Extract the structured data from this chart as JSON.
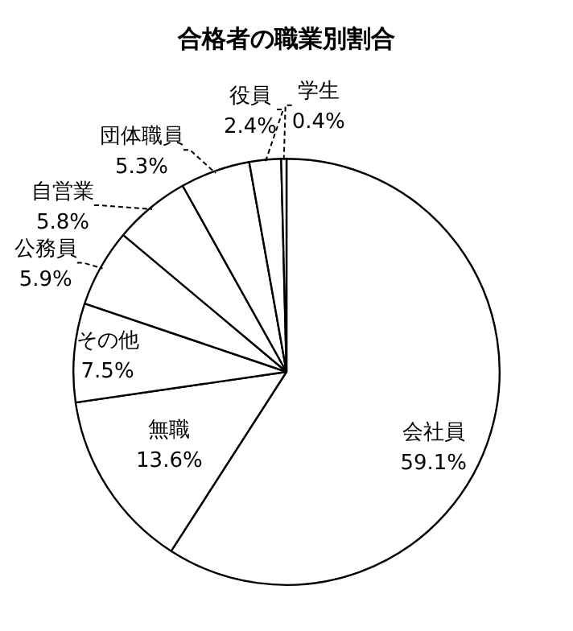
{
  "chart_data": {
    "type": "pie",
    "title": "合格者の職業別割合",
    "categories": [
      "会社員",
      "無職",
      "その他",
      "公務員",
      "自営業",
      "団体職員",
      "役員",
      "学生"
    ],
    "values": [
      59.1,
      13.6,
      7.5,
      5.9,
      5.8,
      5.3,
      2.4,
      0.4
    ],
    "value_labels": [
      "59.1%",
      "13.6%",
      "7.5%",
      "5.9%",
      "5.8%",
      "5.3%",
      "2.4%",
      "0.4%"
    ],
    "colors": [
      "#ffffff",
      "#ffffff",
      "#ffffff",
      "#ffffff",
      "#ffffff",
      "#ffffff",
      "#ffffff",
      "#ffffff"
    ],
    "legend": false
  }
}
